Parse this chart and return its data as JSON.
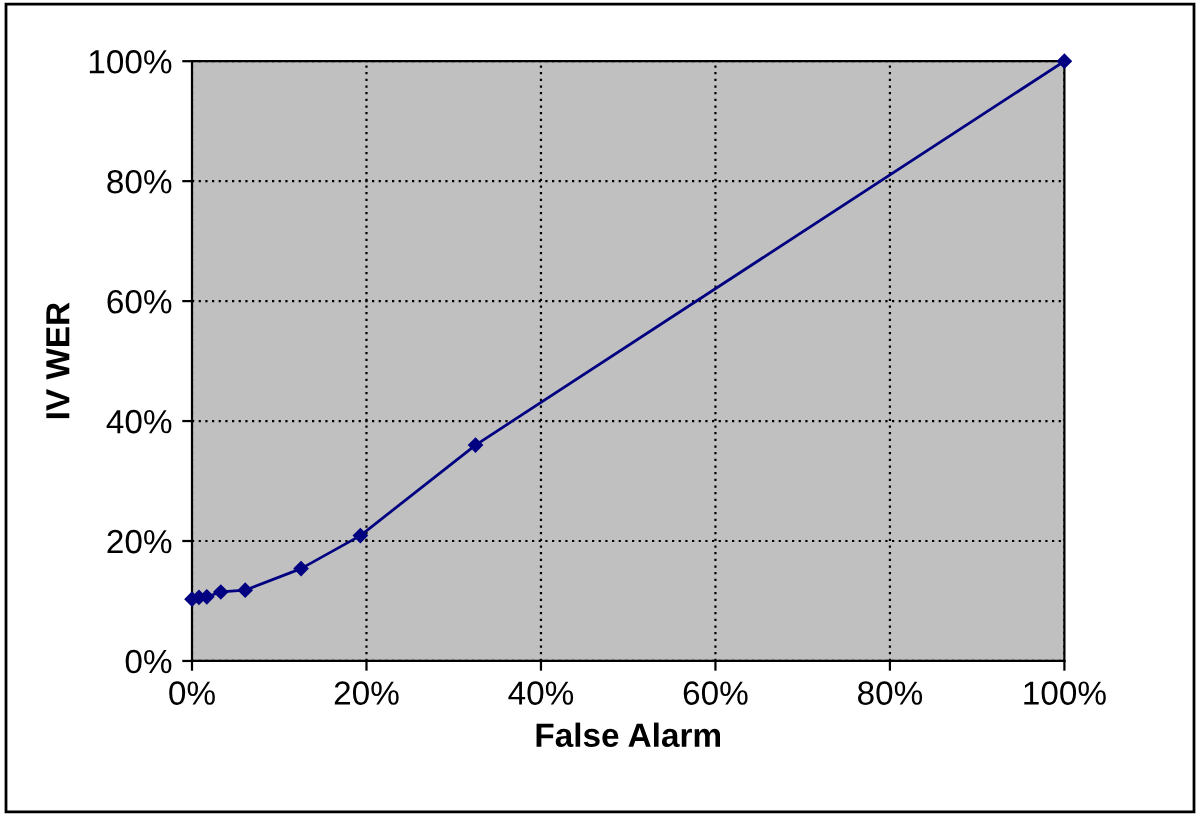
{
  "chart_data": {
    "type": "line",
    "xlabel": "False Alarm",
    "ylabel": "IV WER",
    "x": [
      0,
      0.8,
      1.7,
      3.3,
      6.1,
      12.5,
      19.3,
      32.5,
      100
    ],
    "series": [
      {
        "color": "#000080",
        "values": [
          10.3,
          10.6,
          10.7,
          11.5,
          11.8,
          15.4,
          20.9,
          36.0,
          100
        ]
      }
    ],
    "xlim": [
      0,
      100
    ],
    "ylim": [
      0,
      100
    ],
    "xticks": [
      {
        "value": 0,
        "label": "0%"
      },
      {
        "value": 20,
        "label": "20%"
      },
      {
        "value": 40,
        "label": "40%"
      },
      {
        "value": 60,
        "label": "60%"
      },
      {
        "value": 80,
        "label": "80%"
      },
      {
        "value": 100,
        "label": "100%"
      }
    ],
    "yticks": [
      {
        "value": 0,
        "label": "0%"
      },
      {
        "value": 20,
        "label": "20%"
      },
      {
        "value": 40,
        "label": "40%"
      },
      {
        "value": 60,
        "label": "60%"
      },
      {
        "value": 80,
        "label": "80%"
      },
      {
        "value": 100,
        "label": "100%"
      }
    ],
    "grid": true,
    "marker": "diamond",
    "line_style": "solid",
    "legend": false
  }
}
